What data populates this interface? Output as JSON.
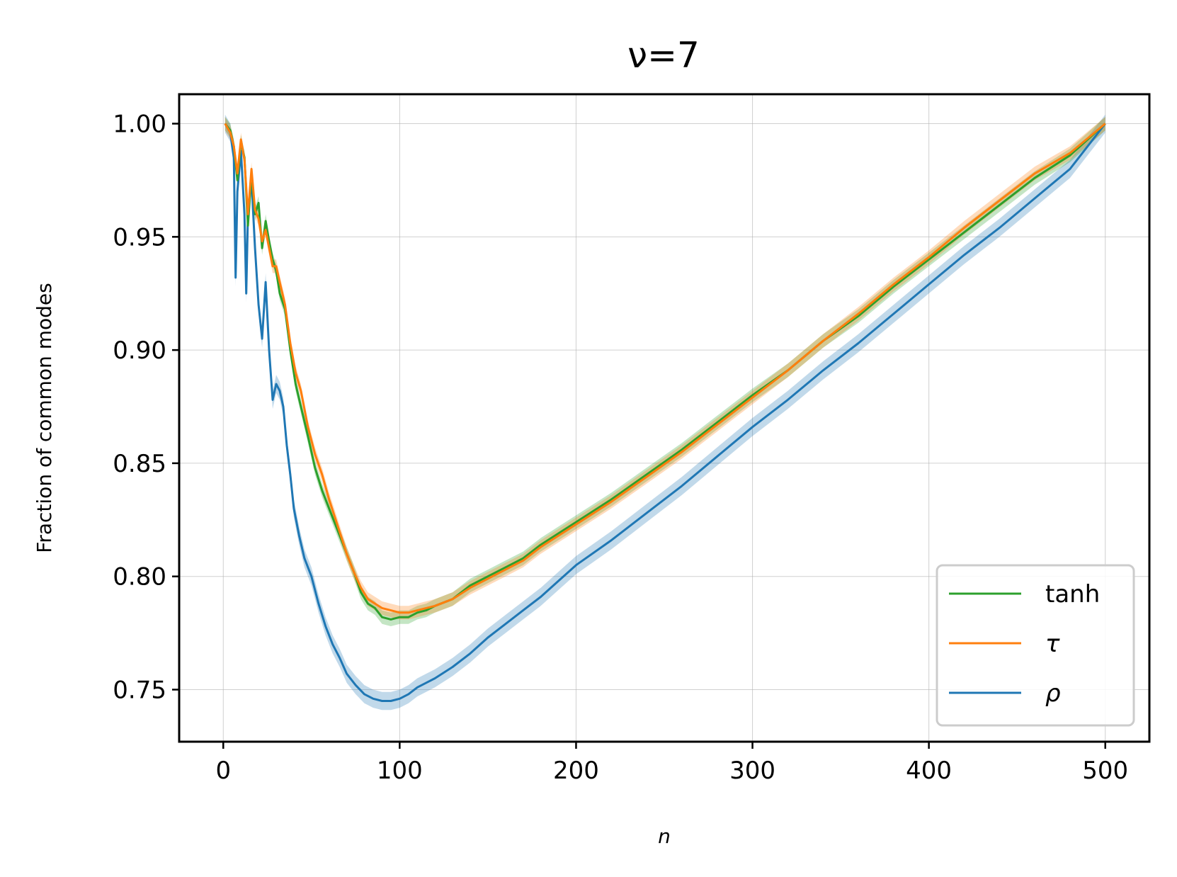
{
  "chart_data": {
    "type": "line",
    "title": "ν=7",
    "xlabel": "n",
    "ylabel": "Fraction of common modes",
    "xlim": [
      -25,
      525
    ],
    "ylim": [
      0.727,
      1.013
    ],
    "xticks": [
      0,
      100,
      200,
      300,
      400,
      500
    ],
    "yticks": [
      0.75,
      0.8,
      0.85,
      0.9,
      0.95,
      1.0
    ],
    "xtick_labels": [
      "0",
      "100",
      "200",
      "300",
      "400",
      "500"
    ],
    "ytick_labels": [
      "0.75",
      "0.80",
      "0.85",
      "0.90",
      "0.95",
      "1.00"
    ],
    "grid": true,
    "legend_position": "bottom-right",
    "series": [
      {
        "name": "tanh",
        "color": "#2ca02c",
        "band": 0.003,
        "points": [
          [
            1,
            1.0
          ],
          [
            4,
            0.997
          ],
          [
            6,
            0.99
          ],
          [
            8,
            0.975
          ],
          [
            10,
            0.992
          ],
          [
            12,
            0.985
          ],
          [
            14,
            0.955
          ],
          [
            16,
            0.978
          ],
          [
            18,
            0.96
          ],
          [
            20,
            0.965
          ],
          [
            22,
            0.945
          ],
          [
            24,
            0.957
          ],
          [
            26,
            0.948
          ],
          [
            28,
            0.94
          ],
          [
            30,
            0.935
          ],
          [
            32,
            0.925
          ],
          [
            35,
            0.918
          ],
          [
            38,
            0.9
          ],
          [
            41,
            0.885
          ],
          [
            44,
            0.875
          ],
          [
            48,
            0.862
          ],
          [
            52,
            0.848
          ],
          [
            56,
            0.838
          ],
          [
            60,
            0.83
          ],
          [
            65,
            0.82
          ],
          [
            70,
            0.81
          ],
          [
            74,
            0.802
          ],
          [
            78,
            0.793
          ],
          [
            82,
            0.788
          ],
          [
            86,
            0.786
          ],
          [
            90,
            0.782
          ],
          [
            95,
            0.781
          ],
          [
            100,
            0.782
          ],
          [
            105,
            0.782
          ],
          [
            110,
            0.784
          ],
          [
            115,
            0.785
          ],
          [
            120,
            0.787
          ],
          [
            130,
            0.79
          ],
          [
            140,
            0.796
          ],
          [
            150,
            0.8
          ],
          [
            160,
            0.804
          ],
          [
            170,
            0.808
          ],
          [
            180,
            0.814
          ],
          [
            190,
            0.819
          ],
          [
            200,
            0.824
          ],
          [
            220,
            0.834
          ],
          [
            240,
            0.845
          ],
          [
            260,
            0.856
          ],
          [
            280,
            0.868
          ],
          [
            300,
            0.88
          ],
          [
            320,
            0.891
          ],
          [
            340,
            0.904
          ],
          [
            360,
            0.915
          ],
          [
            380,
            0.928
          ],
          [
            400,
            0.94
          ],
          [
            420,
            0.952
          ],
          [
            440,
            0.964
          ],
          [
            460,
            0.976
          ],
          [
            480,
            0.986
          ],
          [
            500,
            1.0
          ]
        ]
      },
      {
        "name": "τ",
        "color": "#ff7f0e",
        "band": 0.003,
        "points": [
          [
            1,
            1.0
          ],
          [
            4,
            0.996
          ],
          [
            6,
            0.99
          ],
          [
            8,
            0.978
          ],
          [
            10,
            0.993
          ],
          [
            12,
            0.984
          ],
          [
            14,
            0.96
          ],
          [
            16,
            0.98
          ],
          [
            18,
            0.962
          ],
          [
            20,
            0.958
          ],
          [
            22,
            0.948
          ],
          [
            24,
            0.953
          ],
          [
            26,
            0.945
          ],
          [
            28,
            0.937
          ],
          [
            30,
            0.937
          ],
          [
            32,
            0.93
          ],
          [
            35,
            0.92
          ],
          [
            38,
            0.903
          ],
          [
            41,
            0.89
          ],
          [
            44,
            0.882
          ],
          [
            48,
            0.866
          ],
          [
            52,
            0.854
          ],
          [
            56,
            0.845
          ],
          [
            60,
            0.834
          ],
          [
            65,
            0.822
          ],
          [
            70,
            0.81
          ],
          [
            74,
            0.802
          ],
          [
            78,
            0.795
          ],
          [
            82,
            0.79
          ],
          [
            86,
            0.788
          ],
          [
            90,
            0.786
          ],
          [
            95,
            0.785
          ],
          [
            100,
            0.784
          ],
          [
            105,
            0.784
          ],
          [
            110,
            0.785
          ],
          [
            115,
            0.786
          ],
          [
            120,
            0.787
          ],
          [
            130,
            0.79
          ],
          [
            140,
            0.795
          ],
          [
            150,
            0.799
          ],
          [
            160,
            0.803
          ],
          [
            170,
            0.807
          ],
          [
            180,
            0.813
          ],
          [
            190,
            0.818
          ],
          [
            200,
            0.823
          ],
          [
            220,
            0.833
          ],
          [
            240,
            0.844
          ],
          [
            260,
            0.855
          ],
          [
            280,
            0.867
          ],
          [
            300,
            0.879
          ],
          [
            320,
            0.891
          ],
          [
            340,
            0.904
          ],
          [
            360,
            0.916
          ],
          [
            380,
            0.929
          ],
          [
            400,
            0.941
          ],
          [
            420,
            0.954
          ],
          [
            440,
            0.966
          ],
          [
            460,
            0.978
          ],
          [
            480,
            0.987
          ],
          [
            500,
            1.0
          ]
        ]
      },
      {
        "name": "ρ",
        "color": "#1f77b4",
        "band": 0.004,
        "points": [
          [
            1,
            1.0
          ],
          [
            4,
            0.996
          ],
          [
            6,
            0.985
          ],
          [
            7,
            0.932
          ],
          [
            8,
            0.97
          ],
          [
            10,
            0.988
          ],
          [
            12,
            0.96
          ],
          [
            13,
            0.925
          ],
          [
            14,
            0.96
          ],
          [
            16,
            0.975
          ],
          [
            18,
            0.945
          ],
          [
            20,
            0.92
          ],
          [
            22,
            0.905
          ],
          [
            24,
            0.93
          ],
          [
            26,
            0.9
          ],
          [
            28,
            0.878
          ],
          [
            30,
            0.885
          ],
          [
            32,
            0.882
          ],
          [
            34,
            0.875
          ],
          [
            36,
            0.858
          ],
          [
            38,
            0.845
          ],
          [
            40,
            0.83
          ],
          [
            43,
            0.818
          ],
          [
            46,
            0.808
          ],
          [
            50,
            0.8
          ],
          [
            54,
            0.788
          ],
          [
            58,
            0.778
          ],
          [
            62,
            0.77
          ],
          [
            66,
            0.764
          ],
          [
            70,
            0.757
          ],
          [
            75,
            0.752
          ],
          [
            80,
            0.748
          ],
          [
            85,
            0.746
          ],
          [
            90,
            0.745
          ],
          [
            95,
            0.745
          ],
          [
            100,
            0.746
          ],
          [
            105,
            0.748
          ],
          [
            110,
            0.751
          ],
          [
            115,
            0.753
          ],
          [
            120,
            0.755
          ],
          [
            130,
            0.76
          ],
          [
            140,
            0.766
          ],
          [
            150,
            0.773
          ],
          [
            160,
            0.779
          ],
          [
            170,
            0.785
          ],
          [
            180,
            0.791
          ],
          [
            190,
            0.798
          ],
          [
            200,
            0.805
          ],
          [
            220,
            0.816
          ],
          [
            240,
            0.828
          ],
          [
            260,
            0.84
          ],
          [
            280,
            0.853
          ],
          [
            300,
            0.866
          ],
          [
            320,
            0.878
          ],
          [
            340,
            0.891
          ],
          [
            360,
            0.903
          ],
          [
            380,
            0.916
          ],
          [
            400,
            0.929
          ],
          [
            420,
            0.942
          ],
          [
            440,
            0.954
          ],
          [
            460,
            0.967
          ],
          [
            480,
            0.98
          ],
          [
            500,
            1.0
          ]
        ]
      }
    ]
  }
}
